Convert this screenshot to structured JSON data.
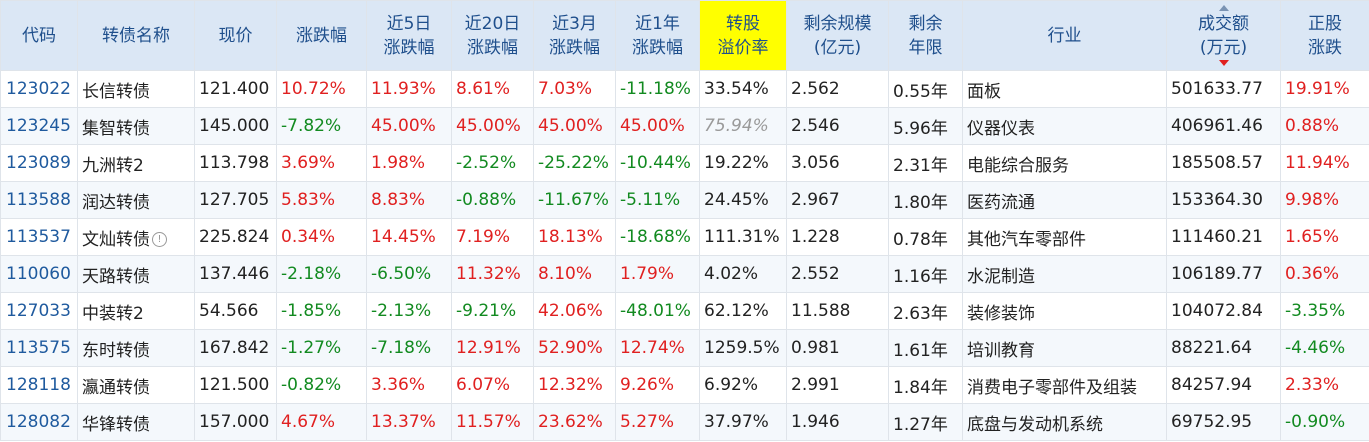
{
  "colors": {
    "up": "#e02020",
    "down": "#128a20",
    "header_bg": "#dbe7f5",
    "header_text": "#1f4f8c",
    "highlight": "#ffff00",
    "code_link": "#1f5a9e"
  },
  "headers": {
    "code": [
      "代码"
    ],
    "name": [
      "转债名称"
    ],
    "price": [
      "现价"
    ],
    "chg": [
      "涨跌幅"
    ],
    "chg5d": [
      "近5日",
      "涨跌幅"
    ],
    "chg20d": [
      "近20日",
      "涨跌幅"
    ],
    "chg3m": [
      "近3月",
      "涨跌幅"
    ],
    "chg1y": [
      "近1年",
      "涨跌幅"
    ],
    "premium": [
      "转股",
      "溢价率"
    ],
    "scale": [
      "剩余规模",
      "(亿元)"
    ],
    "term": [
      "剩余",
      "年限"
    ],
    "industry": [
      "行业"
    ],
    "volume": [
      "成交额",
      "(万元)"
    ],
    "stock_chg": [
      "正股",
      "涨跌"
    ]
  },
  "rows": [
    {
      "code": "123022",
      "name": "长信转债",
      "info": false,
      "price": "121.400",
      "chg": "10.72%",
      "chg5d": "11.93%",
      "chg20d": "8.61%",
      "chg3m": "7.03%",
      "chg1y": "-11.18%",
      "premium": "33.54%",
      "premium_muted": false,
      "scale": "2.562",
      "term": "0.55年",
      "industry": "面板",
      "volume": "501633.77",
      "stock_chg": "19.91%"
    },
    {
      "code": "123245",
      "name": "集智转债",
      "info": false,
      "price": "145.000",
      "chg": "-7.82%",
      "chg5d": "45.00%",
      "chg20d": "45.00%",
      "chg3m": "45.00%",
      "chg1y": "45.00%",
      "premium": "75.94%",
      "premium_muted": true,
      "scale": "2.546",
      "term": "5.96年",
      "industry": "仪器仪表",
      "volume": "406961.46",
      "stock_chg": "0.88%"
    },
    {
      "code": "123089",
      "name": "九洲转2",
      "info": false,
      "price": "113.798",
      "chg": "3.69%",
      "chg5d": "1.98%",
      "chg20d": "-2.52%",
      "chg3m": "-25.22%",
      "chg1y": "-10.44%",
      "premium": "19.22%",
      "premium_muted": false,
      "scale": "3.056",
      "term": "2.31年",
      "industry": "电能综合服务",
      "volume": "185508.57",
      "stock_chg": "11.94%"
    },
    {
      "code": "113588",
      "name": "润达转债",
      "info": false,
      "price": "127.705",
      "chg": "5.83%",
      "chg5d": "8.83%",
      "chg20d": "-0.88%",
      "chg3m": "-11.67%",
      "chg1y": "-5.11%",
      "premium": "24.45%",
      "premium_muted": false,
      "scale": "2.967",
      "term": "1.80年",
      "industry": "医药流通",
      "volume": "153364.30",
      "stock_chg": "9.98%"
    },
    {
      "code": "113537",
      "name": "文灿转债",
      "info": true,
      "price": "225.824",
      "chg": "0.34%",
      "chg5d": "14.45%",
      "chg20d": "7.19%",
      "chg3m": "18.13%",
      "chg1y": "-18.68%",
      "premium": "111.31%",
      "premium_muted": false,
      "scale": "1.228",
      "term": "0.78年",
      "industry": "其他汽车零部件",
      "volume": "111460.21",
      "stock_chg": "1.65%"
    },
    {
      "code": "110060",
      "name": "天路转债",
      "info": false,
      "price": "137.446",
      "chg": "-2.18%",
      "chg5d": "-6.50%",
      "chg20d": "11.32%",
      "chg3m": "8.10%",
      "chg1y": "1.79%",
      "premium": "4.02%",
      "premium_muted": false,
      "scale": "2.552",
      "term": "1.16年",
      "industry": "水泥制造",
      "volume": "106189.77",
      "stock_chg": "0.36%"
    },
    {
      "code": "127033",
      "name": "中装转2",
      "info": false,
      "price": "54.566",
      "chg": "-1.85%",
      "chg5d": "-2.13%",
      "chg20d": "-9.21%",
      "chg3m": "42.06%",
      "chg1y": "-48.01%",
      "premium": "62.12%",
      "premium_muted": false,
      "scale": "11.588",
      "term": "2.63年",
      "industry": "装修装饰",
      "volume": "104072.84",
      "stock_chg": "-3.35%"
    },
    {
      "code": "113575",
      "name": "东时转债",
      "info": false,
      "price": "167.842",
      "chg": "-1.27%",
      "chg5d": "-7.18%",
      "chg20d": "12.91%",
      "chg3m": "52.90%",
      "chg1y": "12.74%",
      "premium": "1259.5%",
      "premium_muted": false,
      "scale": "0.981",
      "term": "1.61年",
      "industry": "培训教育",
      "volume": "88221.64",
      "stock_chg": "-4.46%"
    },
    {
      "code": "128118",
      "name": "瀛通转债",
      "info": false,
      "price": "121.500",
      "chg": "-0.82%",
      "chg5d": "3.36%",
      "chg20d": "6.07%",
      "chg3m": "12.32%",
      "chg1y": "9.26%",
      "premium": "6.92%",
      "premium_muted": false,
      "scale": "2.991",
      "term": "1.84年",
      "industry": "消费电子零部件及组装",
      "volume": "84257.94",
      "stock_chg": "2.33%"
    },
    {
      "code": "128082",
      "name": "华锋转债",
      "info": false,
      "price": "157.000",
      "chg": "4.67%",
      "chg5d": "13.37%",
      "chg20d": "11.57%",
      "chg3m": "23.62%",
      "chg1y": "5.27%",
      "premium": "37.97%",
      "premium_muted": false,
      "scale": "1.946",
      "term": "1.27年",
      "industry": "底盘与发动机系统",
      "volume": "69752.95",
      "stock_chg": "-0.90%"
    }
  ]
}
